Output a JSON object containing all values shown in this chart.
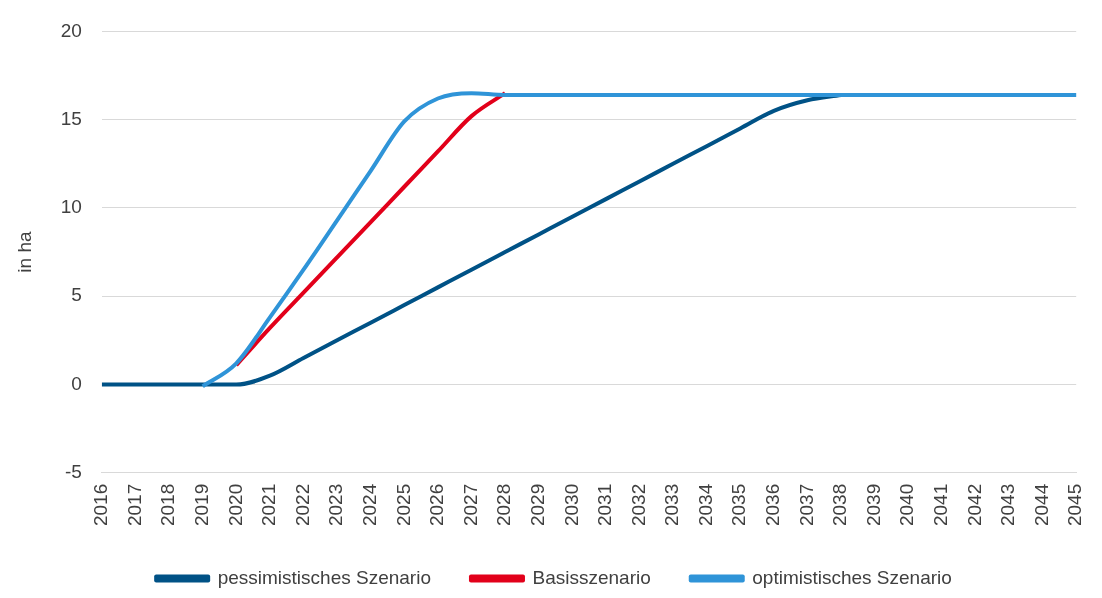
{
  "chart_data": {
    "type": "line",
    "ylabel": "in ha",
    "categories": [
      "2016",
      "2017",
      "2018",
      "2019",
      "2020",
      "2021",
      "2022",
      "2023",
      "2024",
      "2025",
      "2026",
      "2027",
      "2028",
      "2029",
      "2030",
      "2031",
      "2032",
      "2033",
      "2034",
      "2035",
      "2036",
      "2037",
      "2038",
      "2039",
      "2040",
      "2041",
      "2042",
      "2043",
      "2044",
      "2045"
    ],
    "series": [
      {
        "name": "pessimistisches Szenario",
        "color": "#005286",
        "values": [
          0,
          0,
          0,
          0,
          0,
          0.5,
          1.5,
          2.5,
          3.5,
          4.5,
          5.5,
          6.5,
          7.5,
          8.5,
          9.5,
          10.5,
          11.5,
          12.5,
          13.5,
          14.5,
          15.5,
          16.1,
          16.4,
          null,
          null,
          null,
          null,
          null,
          null,
          null
        ]
      },
      {
        "name": "Basisszenario",
        "color": "#e2001a",
        "values": [
          null,
          null,
          null,
          null,
          1.1,
          3.2,
          5.2,
          7.2,
          9.2,
          11.2,
          13.2,
          15.2,
          16.5,
          null,
          null,
          null,
          null,
          null,
          null,
          null,
          null,
          null,
          null,
          null,
          null,
          null,
          null,
          null,
          null,
          null
        ]
      },
      {
        "name": "optimistisches Szenario",
        "color": "#2f94d8",
        "values": [
          null,
          null,
          null,
          -0.1,
          1.2,
          3.8,
          6.5,
          9.3,
          12.1,
          14.9,
          16.2,
          16.5,
          16.4,
          16.4,
          16.4,
          16.4,
          16.4,
          16.4,
          16.4,
          16.4,
          16.4,
          16.4,
          16.4,
          16.4,
          16.4,
          16.4,
          16.4,
          16.4,
          16.4,
          16.4
        ]
      }
    ],
    "ylim": [
      -5,
      20
    ],
    "yticks": [
      -5,
      0,
      5,
      10,
      15,
      20
    ],
    "grid": "y",
    "legend": "bottom",
    "marker": "none",
    "line_style": "solid"
  }
}
